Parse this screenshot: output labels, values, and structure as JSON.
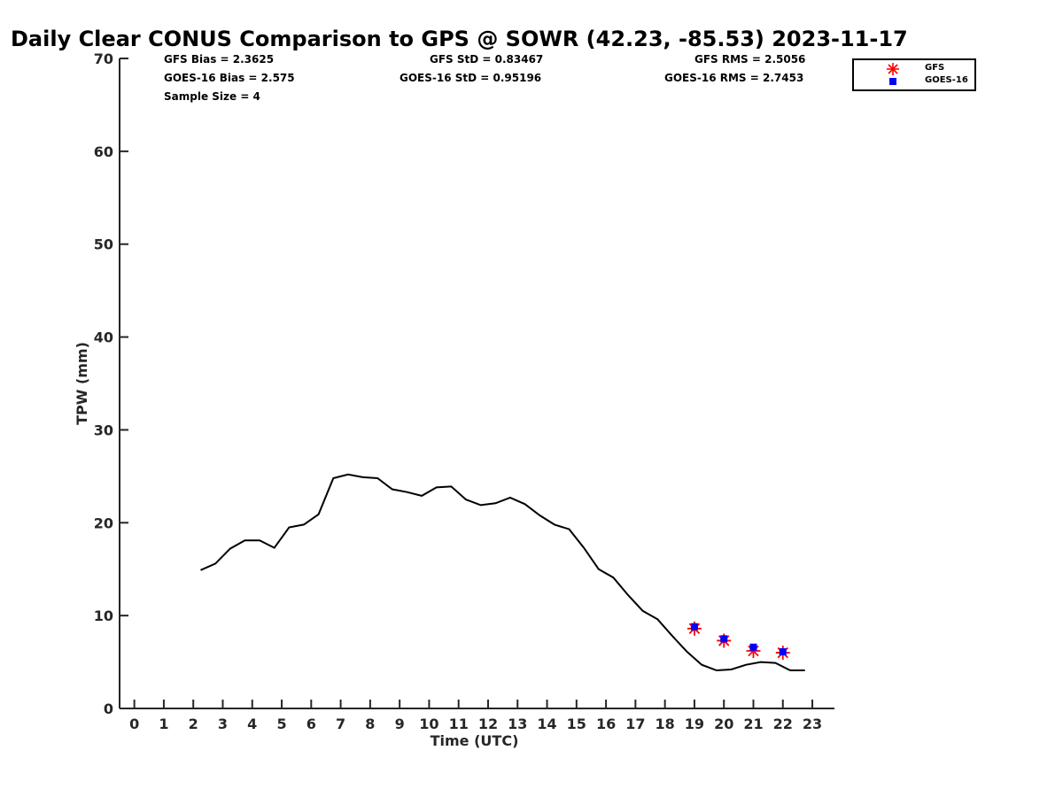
{
  "chart_data": {
    "type": "line",
    "title": "Daily Clear CONUS Comparison to GPS @ SOWR (42.23, -85.53) 2023-11-17",
    "xlabel": "Time (UTC)",
    "ylabel": "TPW (mm)",
    "xlim": [
      -0.5,
      23.75
    ],
    "ylim": [
      0,
      70
    ],
    "xticks": [
      0,
      1,
      2,
      3,
      4,
      5,
      6,
      7,
      8,
      9,
      10,
      11,
      12,
      13,
      14,
      15,
      16,
      17,
      18,
      19,
      20,
      21,
      22,
      23
    ],
    "yticks": [
      0,
      10,
      20,
      30,
      40,
      50,
      60,
      70
    ],
    "gps_line": {
      "name": "GPS",
      "x": [
        2.25,
        2.75,
        3.25,
        3.75,
        4.25,
        4.75,
        5.25,
        5.75,
        6.25,
        6.75,
        7.25,
        7.75,
        8.25,
        8.75,
        9.25,
        9.75,
        10.25,
        10.75,
        11.25,
        11.75,
        12.25,
        12.75,
        13.25,
        13.75,
        14.25,
        14.75,
        15.25,
        15.75,
        16.25,
        16.75,
        17.25,
        17.75,
        18.25,
        18.75,
        19.25,
        19.75,
        20.25,
        20.75,
        21.25,
        21.75,
        22.25,
        22.75
      ],
      "y": [
        14.9,
        15.6,
        17.2,
        18.1,
        18.1,
        17.3,
        19.5,
        19.8,
        20.9,
        24.8,
        25.2,
        24.9,
        24.8,
        23.6,
        23.3,
        22.9,
        23.8,
        23.9,
        22.5,
        21.9,
        22.1,
        22.7,
        22.0,
        20.8,
        19.8,
        19.3,
        17.3,
        15.0,
        14.1,
        12.2,
        10.5,
        9.6,
        7.8,
        6.1,
        4.7,
        4.1,
        4.2,
        4.7,
        5.0,
        4.9,
        4.1,
        4.1
      ]
    },
    "series": [
      {
        "name": "GFS",
        "color": "#ff0000",
        "marker": "asterisk",
        "x": [
          19,
          20,
          21,
          22
        ],
        "y": [
          8.6,
          7.3,
          6.2,
          6.0
        ]
      },
      {
        "name": "GOES-16",
        "color": "#0000ff",
        "marker": "square",
        "x": [
          19,
          20,
          21,
          22
        ],
        "y": [
          8.8,
          7.5,
          6.6,
          6.1
        ]
      }
    ],
    "legend_position": "top-right"
  },
  "stats": {
    "gfs_bias": "GFS Bias = 2.3625",
    "goes_bias": "GOES-16 Bias = 2.575",
    "sample_size": "Sample Size = 4",
    "gfs_std": "GFS StD = 0.83467",
    "goes_std": "GOES-16 StD = 0.95196",
    "gfs_rms": "GFS RMS = 2.5056",
    "goes_rms": "GOES-16 RMS = 2.7453"
  },
  "legend": {
    "gfs_label": "GFS",
    "goes_label": "GOES-16"
  }
}
